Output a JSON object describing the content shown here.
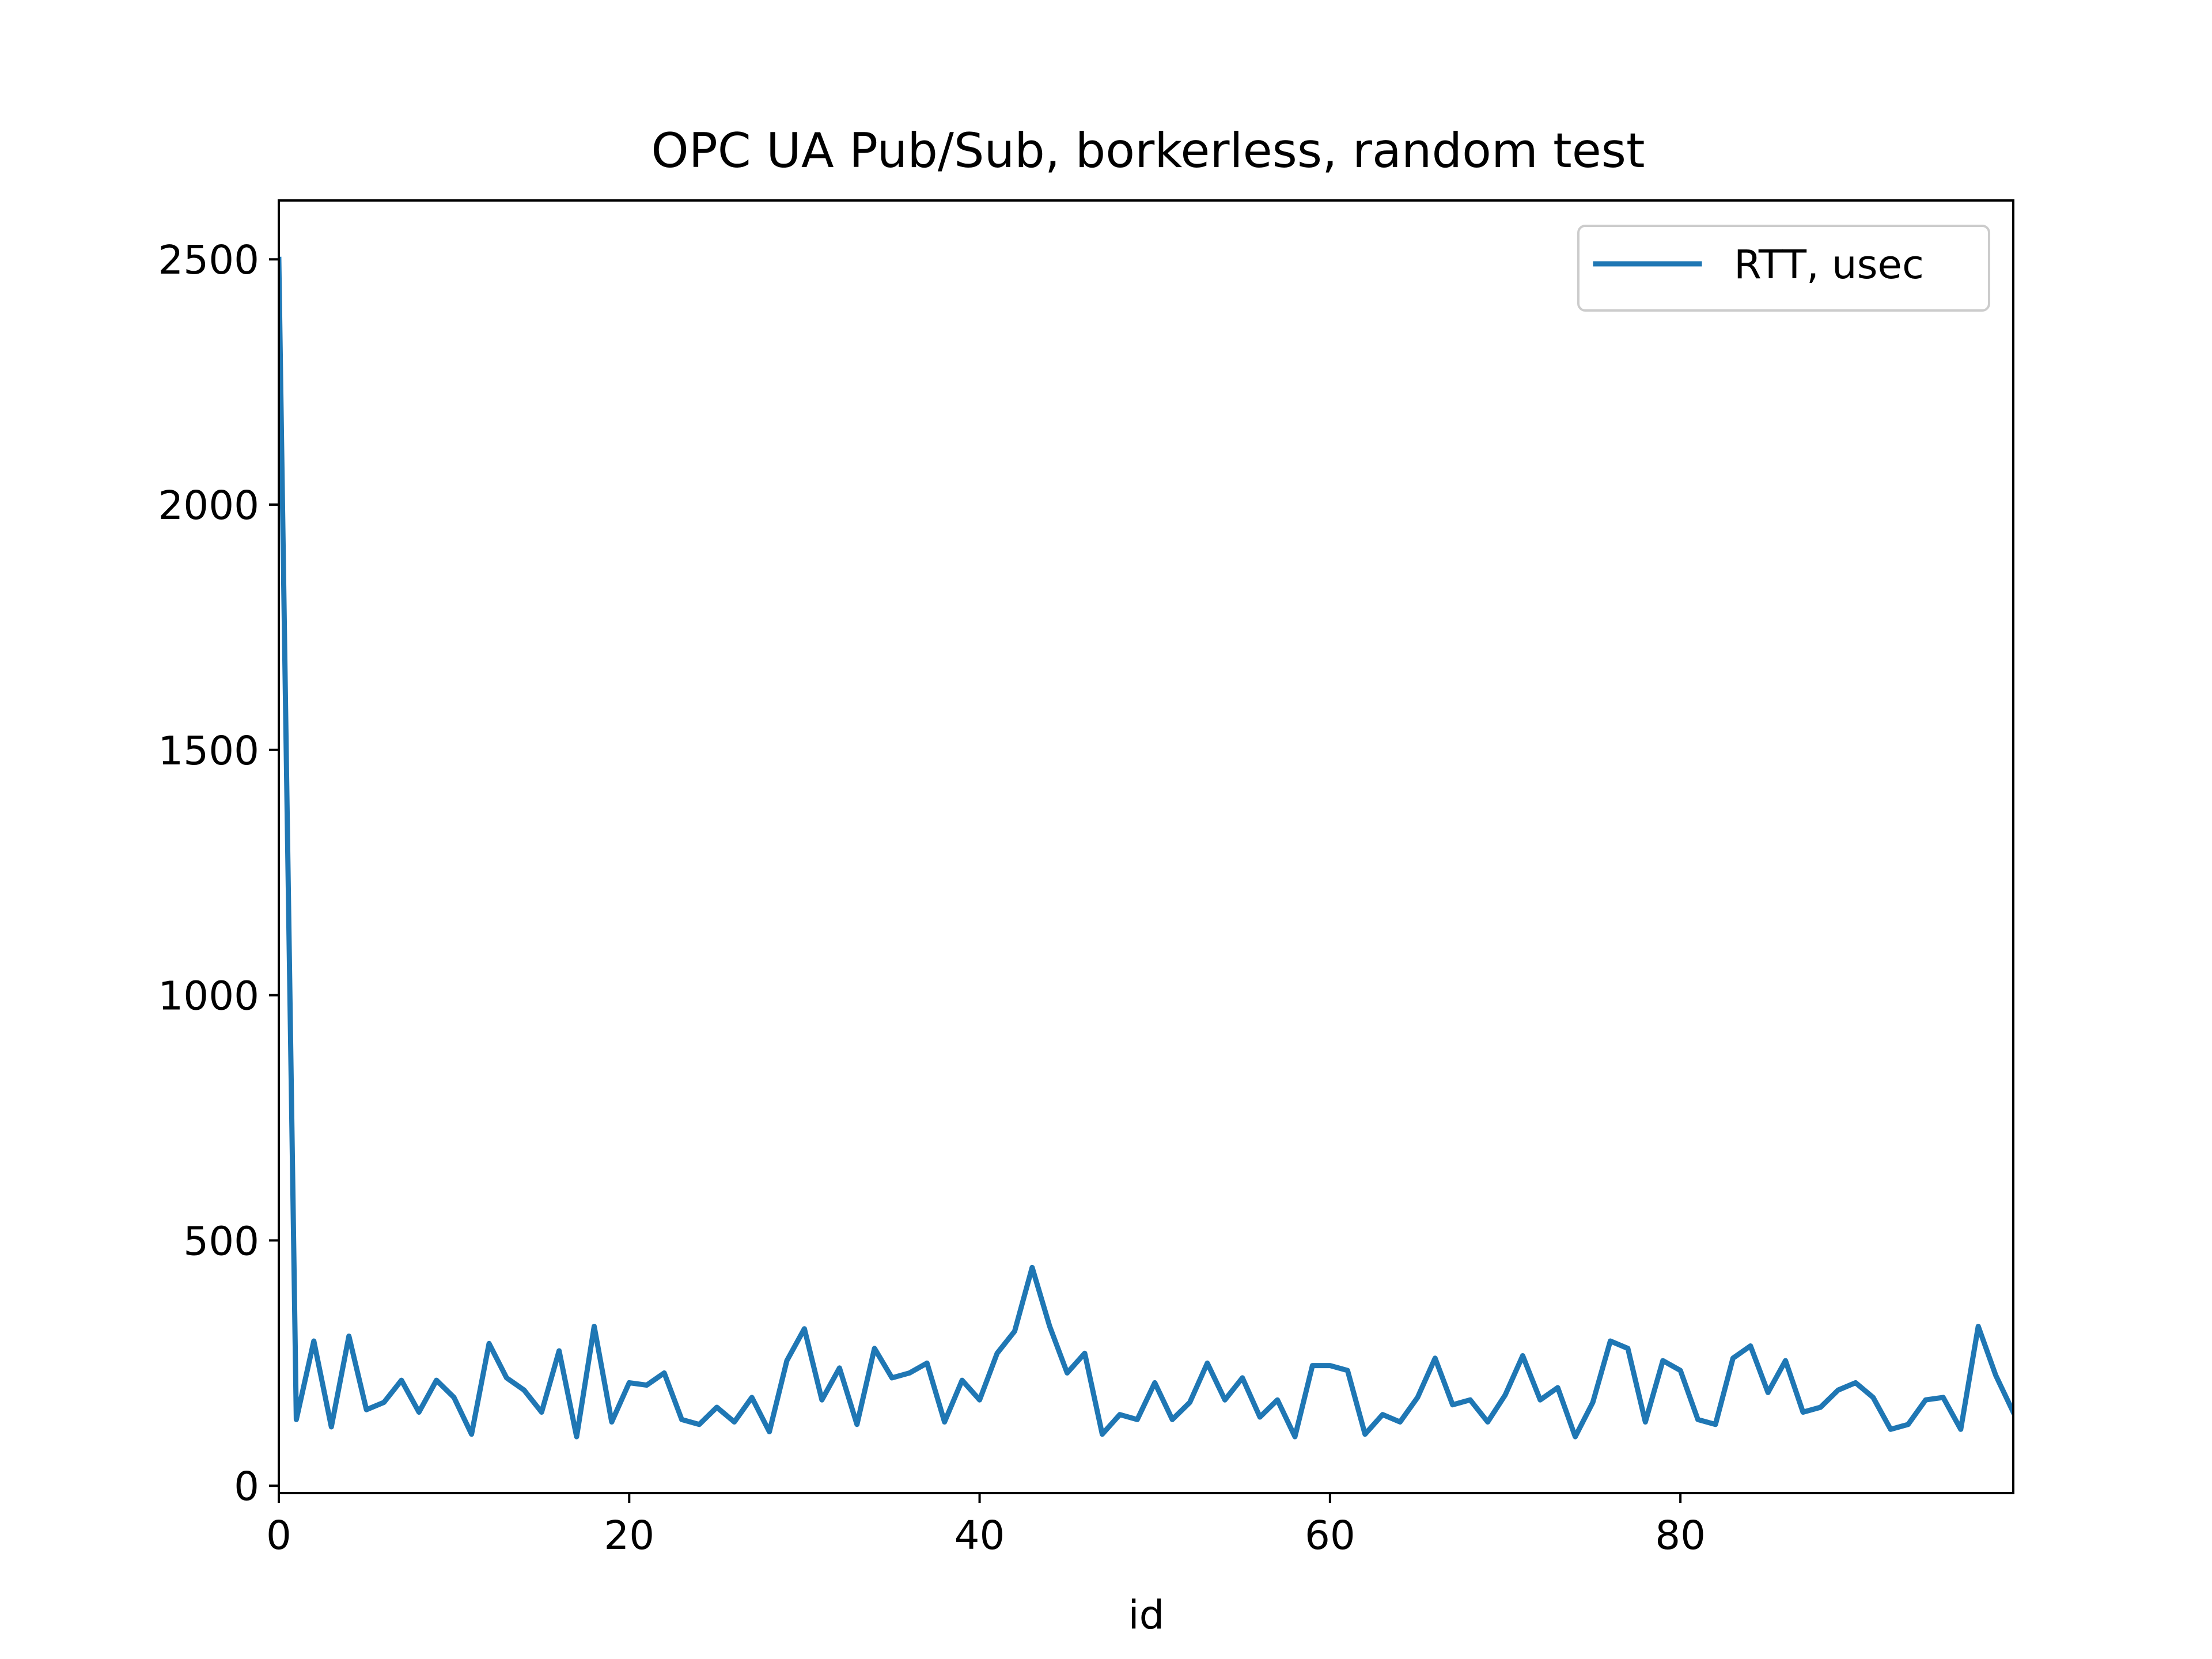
{
  "chart_data": {
    "type": "line",
    "title": "OPC UA Pub/Sub, borkerless, random test",
    "xlabel": "id",
    "ylabel": "",
    "xlim": [
      0,
      99
    ],
    "ylim": [
      -15,
      2620
    ],
    "x_ticks": [
      0,
      20,
      40,
      60,
      80
    ],
    "y_ticks": [
      0,
      500,
      1000,
      1500,
      2000,
      2500
    ],
    "grid": false,
    "legend_position": "top-right",
    "series": [
      {
        "name": "RTT, usec",
        "color": "#1f77b4",
        "x": [
          0,
          1,
          2,
          3,
          4,
          5,
          6,
          7,
          8,
          9,
          10,
          11,
          12,
          13,
          14,
          15,
          16,
          17,
          18,
          19,
          20,
          21,
          22,
          23,
          24,
          25,
          26,
          27,
          28,
          29,
          30,
          31,
          32,
          33,
          34,
          35,
          36,
          37,
          38,
          39,
          40,
          41,
          42,
          43,
          44,
          45,
          46,
          47,
          48,
          49,
          50,
          51,
          52,
          53,
          54,
          55,
          56,
          57,
          58,
          59,
          60,
          61,
          62,
          63,
          64,
          65,
          66,
          67,
          68,
          69,
          70,
          71,
          72,
          73,
          74,
          75,
          76,
          77,
          78,
          79,
          80,
          81,
          82,
          83,
          84,
          85,
          86,
          87,
          88,
          89,
          90,
          91,
          92,
          93,
          94,
          95,
          96,
          97,
          98,
          99
        ],
        "values": [
          2500,
          135,
          295,
          120,
          305,
          155,
          170,
          215,
          150,
          215,
          180,
          105,
          290,
          220,
          195,
          150,
          275,
          100,
          325,
          130,
          210,
          205,
          230,
          135,
          125,
          160,
          130,
          180,
          110,
          255,
          320,
          175,
          240,
          125,
          280,
          220,
          230,
          250,
          130,
          215,
          175,
          270,
          315,
          445,
          325,
          230,
          270,
          105,
          145,
          135,
          210,
          135,
          170,
          250,
          175,
          220,
          140,
          175,
          100,
          245,
          245,
          235,
          105,
          145,
          130,
          180,
          260,
          165,
          175,
          130,
          185,
          265,
          175,
          200,
          100,
          170,
          295,
          280,
          130,
          255,
          235,
          135,
          125,
          260,
          285,
          190,
          255,
          150,
          160,
          195,
          210,
          180,
          115,
          125,
          175,
          180,
          115,
          325,
          225,
          150
        ]
      }
    ]
  }
}
